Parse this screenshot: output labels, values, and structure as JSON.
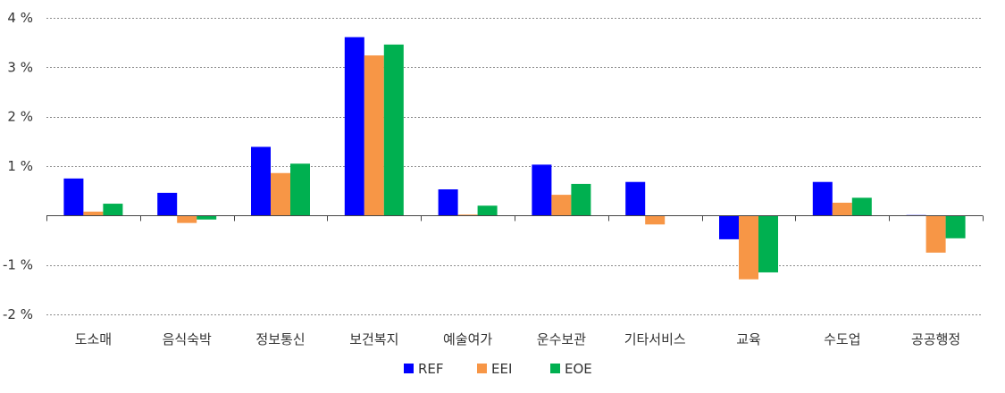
{
  "chart_data": {
    "type": "bar",
    "title": "",
    "xlabel": "",
    "ylabel": "",
    "categories": [
      "도소매",
      "음식숙박",
      "정보통신",
      "보건복지",
      "예술여가",
      "운수보관",
      "기타서비스",
      "교육",
      "수도업",
      "공공행정"
    ],
    "series": [
      {
        "name": "REF",
        "color": "#0000ff",
        "values": [
          0.75,
          0.46,
          1.39,
          3.61,
          0.53,
          1.03,
          0.68,
          -0.48,
          0.68,
          0.01
        ]
      },
      {
        "name": "EEI",
        "color": "#f79646",
        "values": [
          0.08,
          -0.15,
          0.86,
          3.24,
          0.02,
          0.42,
          -0.18,
          -1.29,
          0.26,
          -0.75
        ]
      },
      {
        "name": "EOE",
        "color": "#00b050",
        "values": [
          0.24,
          -0.08,
          1.05,
          3.46,
          0.2,
          0.64,
          0.0,
          -1.15,
          0.36,
          -0.46
        ]
      }
    ],
    "ylim": [
      -2,
      4
    ],
    "y_ticks": [
      -2,
      -1,
      1,
      2,
      3,
      4
    ],
    "y_tick_labels": [
      "-2 %",
      "-1 %",
      "1 %",
      "2 %",
      "3 %",
      "4 %"
    ],
    "grid": true,
    "legend": "bottom-center"
  }
}
